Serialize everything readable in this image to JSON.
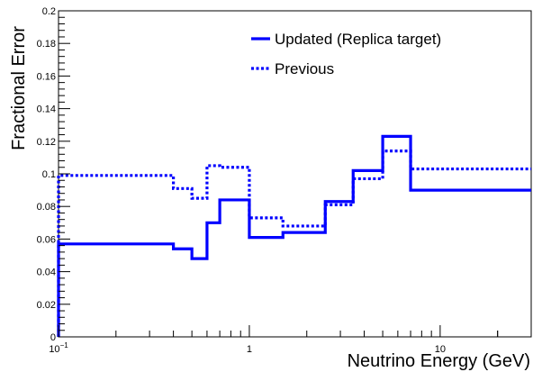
{
  "chart_data": {
    "type": "line",
    "xlabel": "Neutrino Energy (GeV)",
    "ylabel": "Fractional Error",
    "xscale": "log",
    "xlim": [
      0.1,
      30
    ],
    "ylim": [
      0,
      0.2
    ],
    "grid": false,
    "legend_position": "top-right",
    "y_ticks": [
      "0",
      "0.02",
      "0.04",
      "0.06",
      "0.08",
      "0.1",
      "0.12",
      "0.14",
      "0.16",
      "0.18",
      "0.2"
    ],
    "x_ticks": [
      {
        "value": 0.1,
        "base": "10",
        "exp": "−1"
      },
      {
        "value": 1,
        "base": "1",
        "exp": ""
      },
      {
        "value": 10,
        "base": "10",
        "exp": ""
      }
    ],
    "series": [
      {
        "name": "Updated (Replica target)",
        "style": "solid",
        "color": "#0000ff",
        "edges": [
          0.1,
          0.4,
          0.5,
          0.6,
          0.7,
          1.0,
          1.5,
          2.5,
          3.5,
          5.0,
          7.0,
          30
        ],
        "values": [
          0.057,
          0.054,
          0.048,
          0.07,
          0.084,
          0.061,
          0.064,
          0.083,
          0.102,
          0.123,
          0.09
        ]
      },
      {
        "name": "Previous",
        "style": "dotted",
        "color": "#0000ff",
        "edges": [
          0.1,
          0.4,
          0.5,
          0.6,
          0.7,
          1.0,
          1.5,
          2.5,
          3.5,
          5.0,
          7.0,
          30
        ],
        "values": [
          0.099,
          0.091,
          0.085,
          0.105,
          0.104,
          0.073,
          0.068,
          0.081,
          0.097,
          0.114,
          0.103
        ]
      }
    ]
  }
}
